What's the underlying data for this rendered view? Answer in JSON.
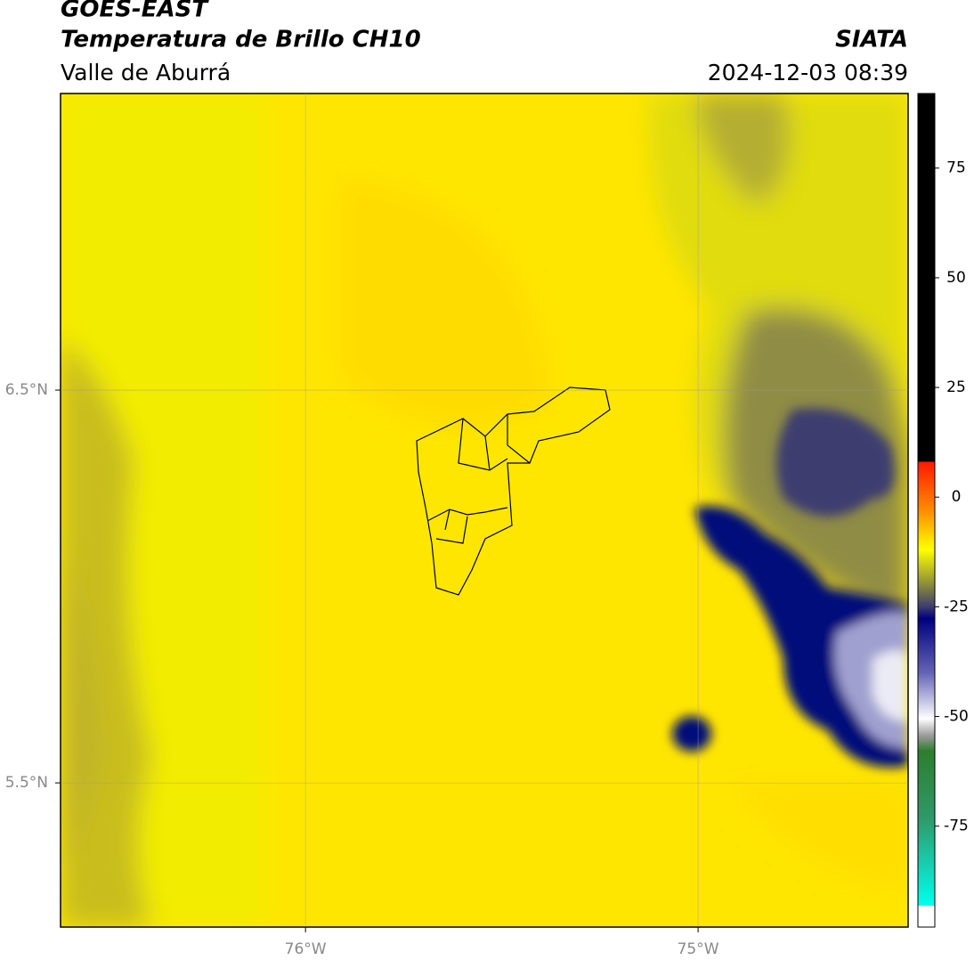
{
  "header": {
    "title": "GOES-EAST",
    "subtitle": "Temperatura de Brillo CH10",
    "region": "Valle de Aburrá",
    "source": "SIATA",
    "datetime": "2024-12-03 08:39"
  },
  "map": {
    "xlim": [
      -76.624,
      -74.465
    ],
    "ylim": [
      5.133,
      7.255
    ],
    "xticks": [
      {
        "value": -76,
        "label": "76°W"
      },
      {
        "value": -75,
        "label": "75°W"
      }
    ],
    "yticks": [
      {
        "value": 6.5,
        "label": "6.5°N"
      },
      {
        "value": 5.5,
        "label": "5.5°N"
      }
    ],
    "grid": true
  },
  "colorbar": {
    "ylim": [
      -98,
      92
    ],
    "yticks": [
      75,
      50,
      25,
      0,
      -25,
      -50,
      -75
    ]
  }
}
